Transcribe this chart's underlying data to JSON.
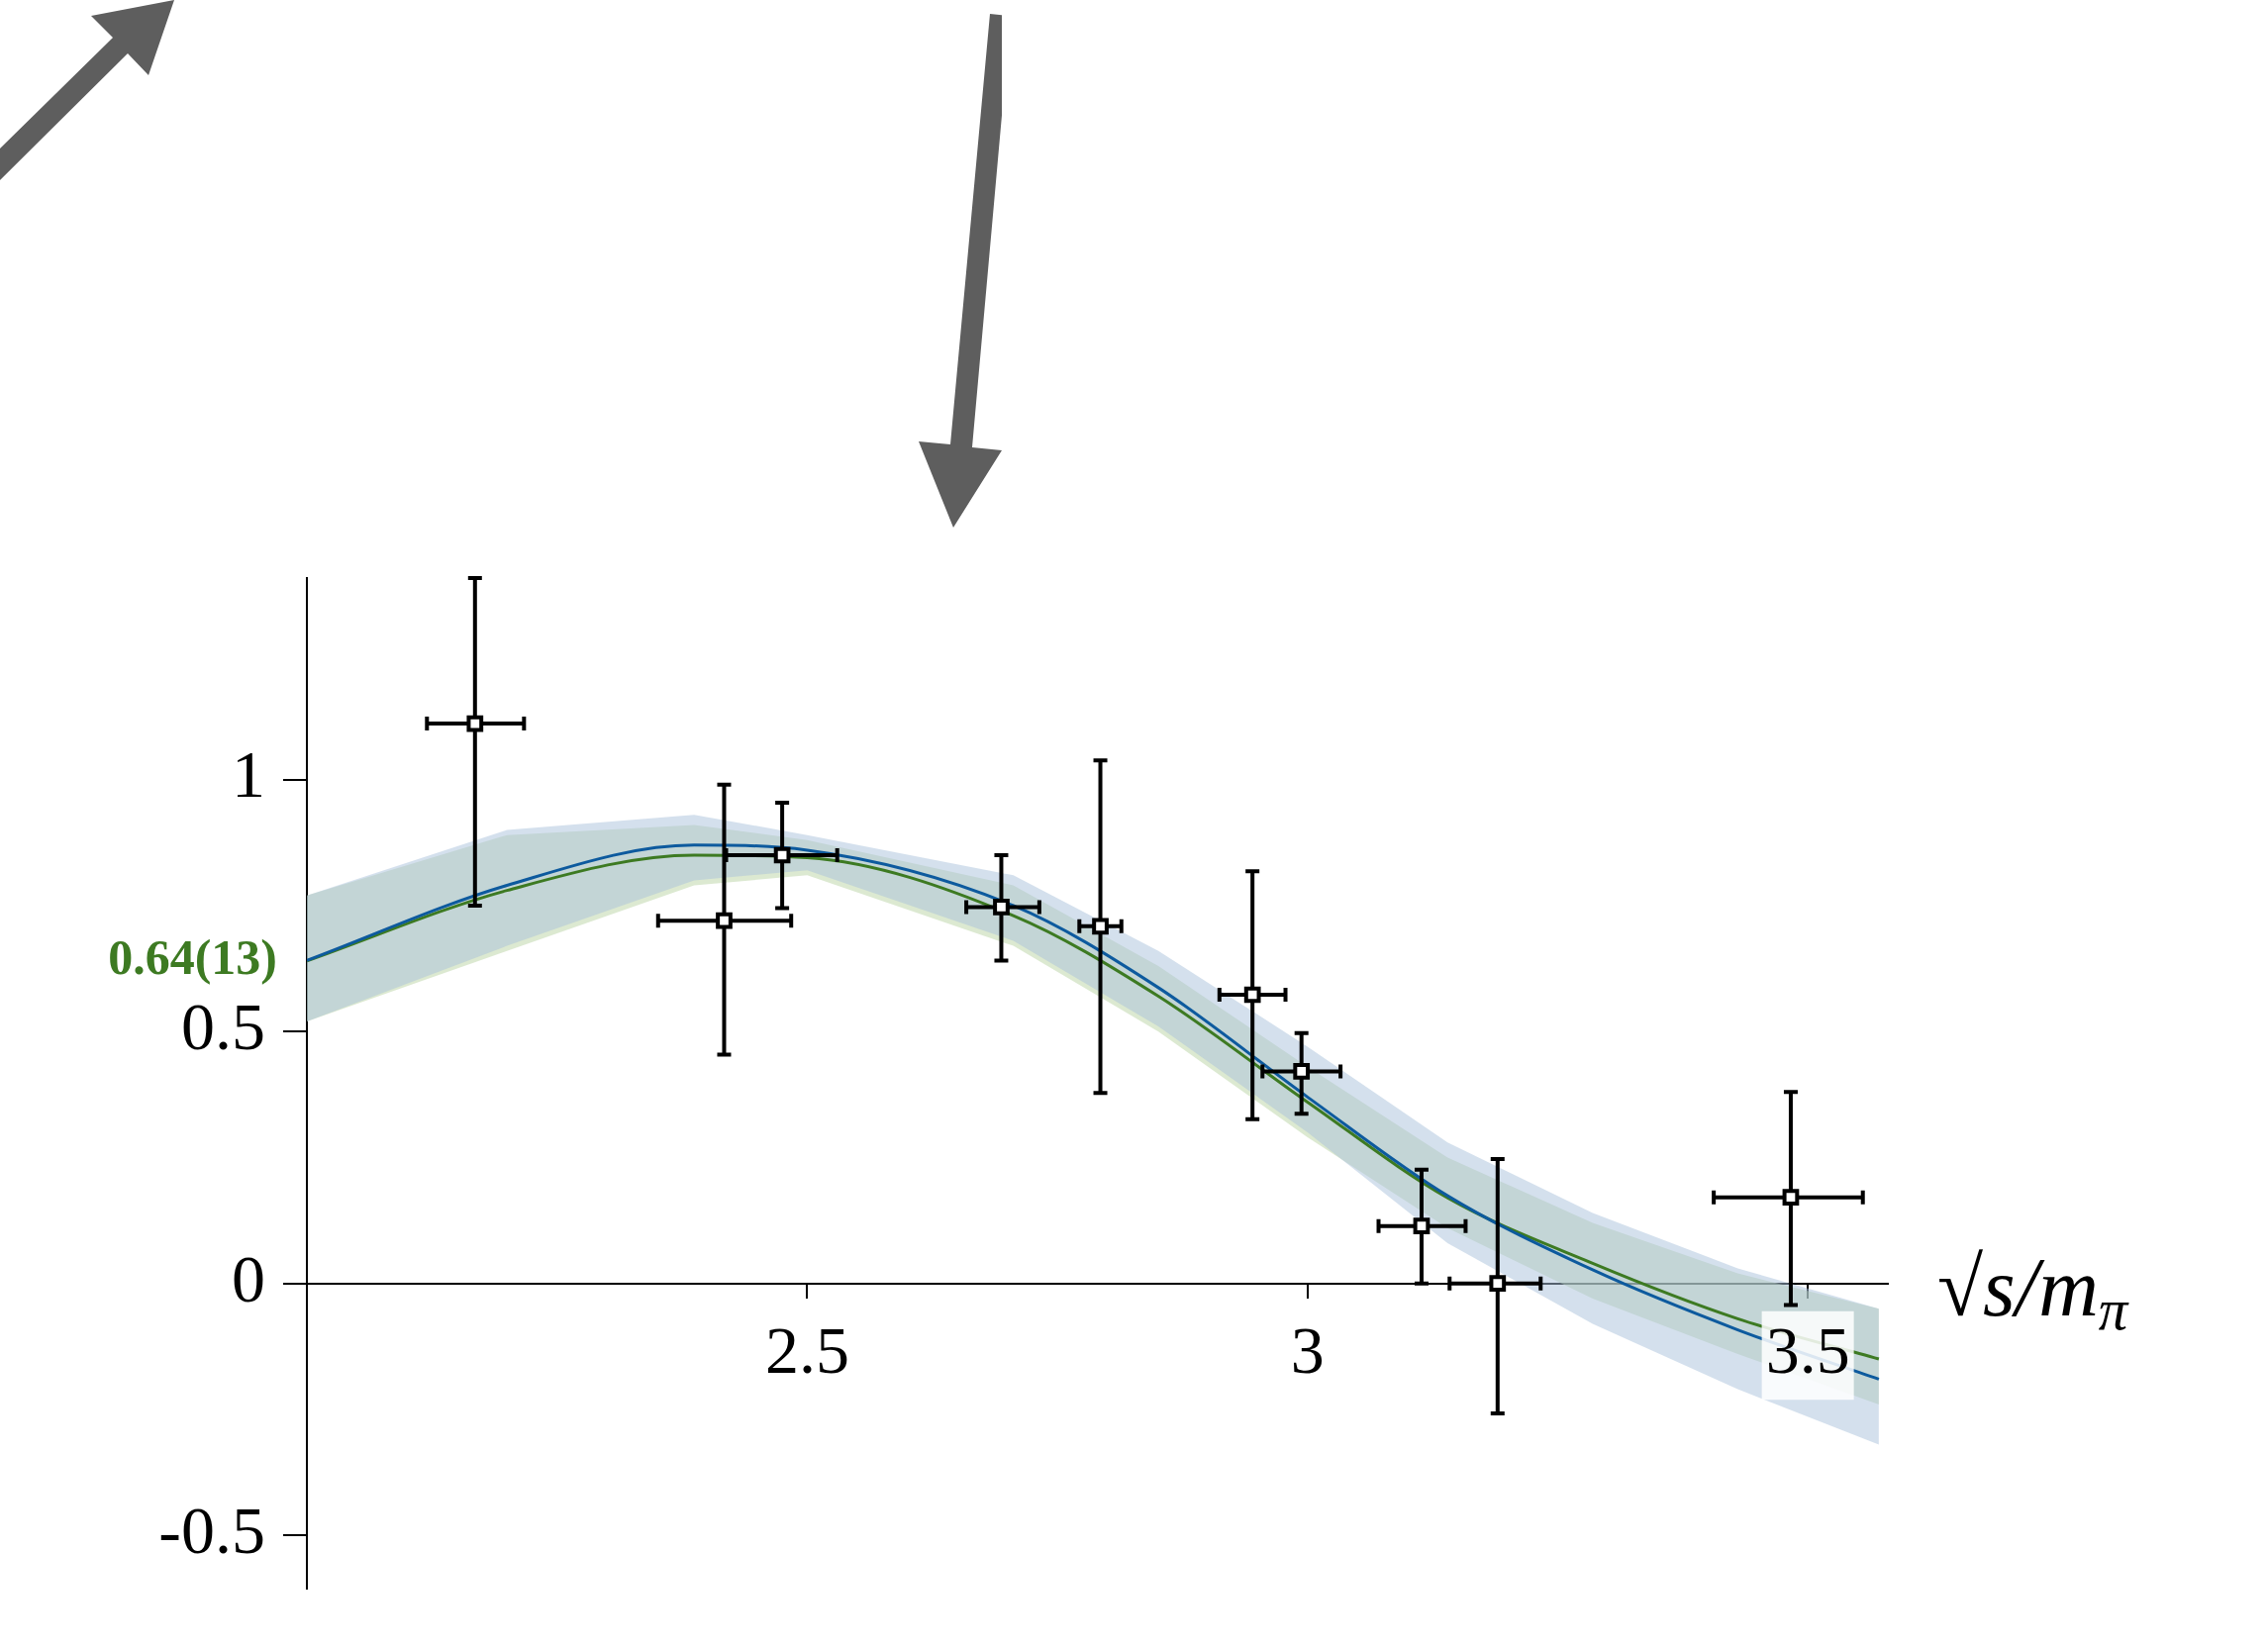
{
  "chart_data": {
    "type": "scatter",
    "xlabel": "√s/m$_{π}$",
    "xlim": [
      2.0,
      3.58
    ],
    "ylim": [
      -0.606,
      1.4
    ],
    "xticks": [
      2.5,
      3,
      3.5
    ],
    "yticks": [
      -0.5,
      0,
      0.5,
      1
    ],
    "grid": false,
    "legend": false,
    "annotations": [
      {
        "text": "0.64(13)",
        "x": 2.0,
        "y": 0.64
      }
    ],
    "series": [
      {
        "type": "line",
        "marker": "none",
        "color": "#0d5a9e",
        "x": [
          2.0,
          2.2,
          2.387,
          2.5,
          2.706,
          2.851,
          3.0,
          3.14,
          3.285,
          3.43,
          3.571
        ],
        "values": [
          0.641,
          0.79,
          0.87,
          0.86,
          0.75,
          0.587,
          0.37,
          0.174,
          0.027,
          -0.092,
          -0.19
        ],
        "lower": [
          0.52,
          0.67,
          0.8,
          0.82,
          0.68,
          0.51,
          0.3,
          0.08,
          -0.08,
          -0.21,
          -0.32
        ],
        "upper": [
          0.77,
          0.9,
          0.93,
          0.89,
          0.81,
          0.66,
          0.47,
          0.28,
          0.14,
          0.03,
          -0.05
        ]
      },
      {
        "type": "line",
        "marker": "none",
        "color": "#3d7a22",
        "x": [
          2.0,
          2.2,
          2.387,
          2.5,
          2.706,
          2.851,
          3.0,
          3.14,
          3.285,
          3.43,
          3.571
        ],
        "values": [
          0.64,
          0.78,
          0.85,
          0.845,
          0.73,
          0.57,
          0.36,
          0.17,
          0.04,
          -0.07,
          -0.15
        ],
        "lower": [
          0.52,
          0.66,
          0.79,
          0.81,
          0.67,
          0.5,
          0.29,
          0.11,
          -0.03,
          -0.14,
          -0.24
        ],
        "upper": [
          0.77,
          0.89,
          0.91,
          0.88,
          0.79,
          0.63,
          0.43,
          0.25,
          0.12,
          0.02,
          -0.05
        ]
      },
      {
        "marker": "square",
        "color": "#000000",
        "x": [
          2.168,
          2.417,
          2.475,
          2.694,
          2.793,
          2.945,
          2.994,
          3.114,
          3.19,
          3.483
        ],
        "values": [
          1.111,
          0.72,
          0.85,
          0.747,
          0.709,
          0.573,
          0.421,
          0.114,
          0,
          0.171
        ],
        "errors": [
          [
            0.75,
            1.4
          ],
          [
            0.454,
            0.99
          ],
          [
            0.745,
            0.954
          ],
          [
            0.641,
            0.85
          ],
          [
            0.378,
            1.038
          ],
          [
            0.326,
            0.818
          ],
          [
            0.337,
            0.497
          ],
          [
            0,
            0.226
          ],
          [
            -0.258,
            0.247
          ],
          [
            -0.043,
            0.38
          ]
        ],
        "xerrors": [
          [
            2.12,
            2.217
          ],
          [
            2.351,
            2.484
          ],
          [
            2.419,
            2.53
          ],
          [
            2.659,
            2.732
          ],
          [
            2.772,
            2.814
          ],
          [
            2.912,
            2.978
          ],
          [
            2.955,
            3.033
          ],
          [
            3.071,
            3.158
          ],
          [
            3.142,
            3.233
          ],
          [
            3.406,
            3.555
          ]
        ]
      }
    ]
  }
}
